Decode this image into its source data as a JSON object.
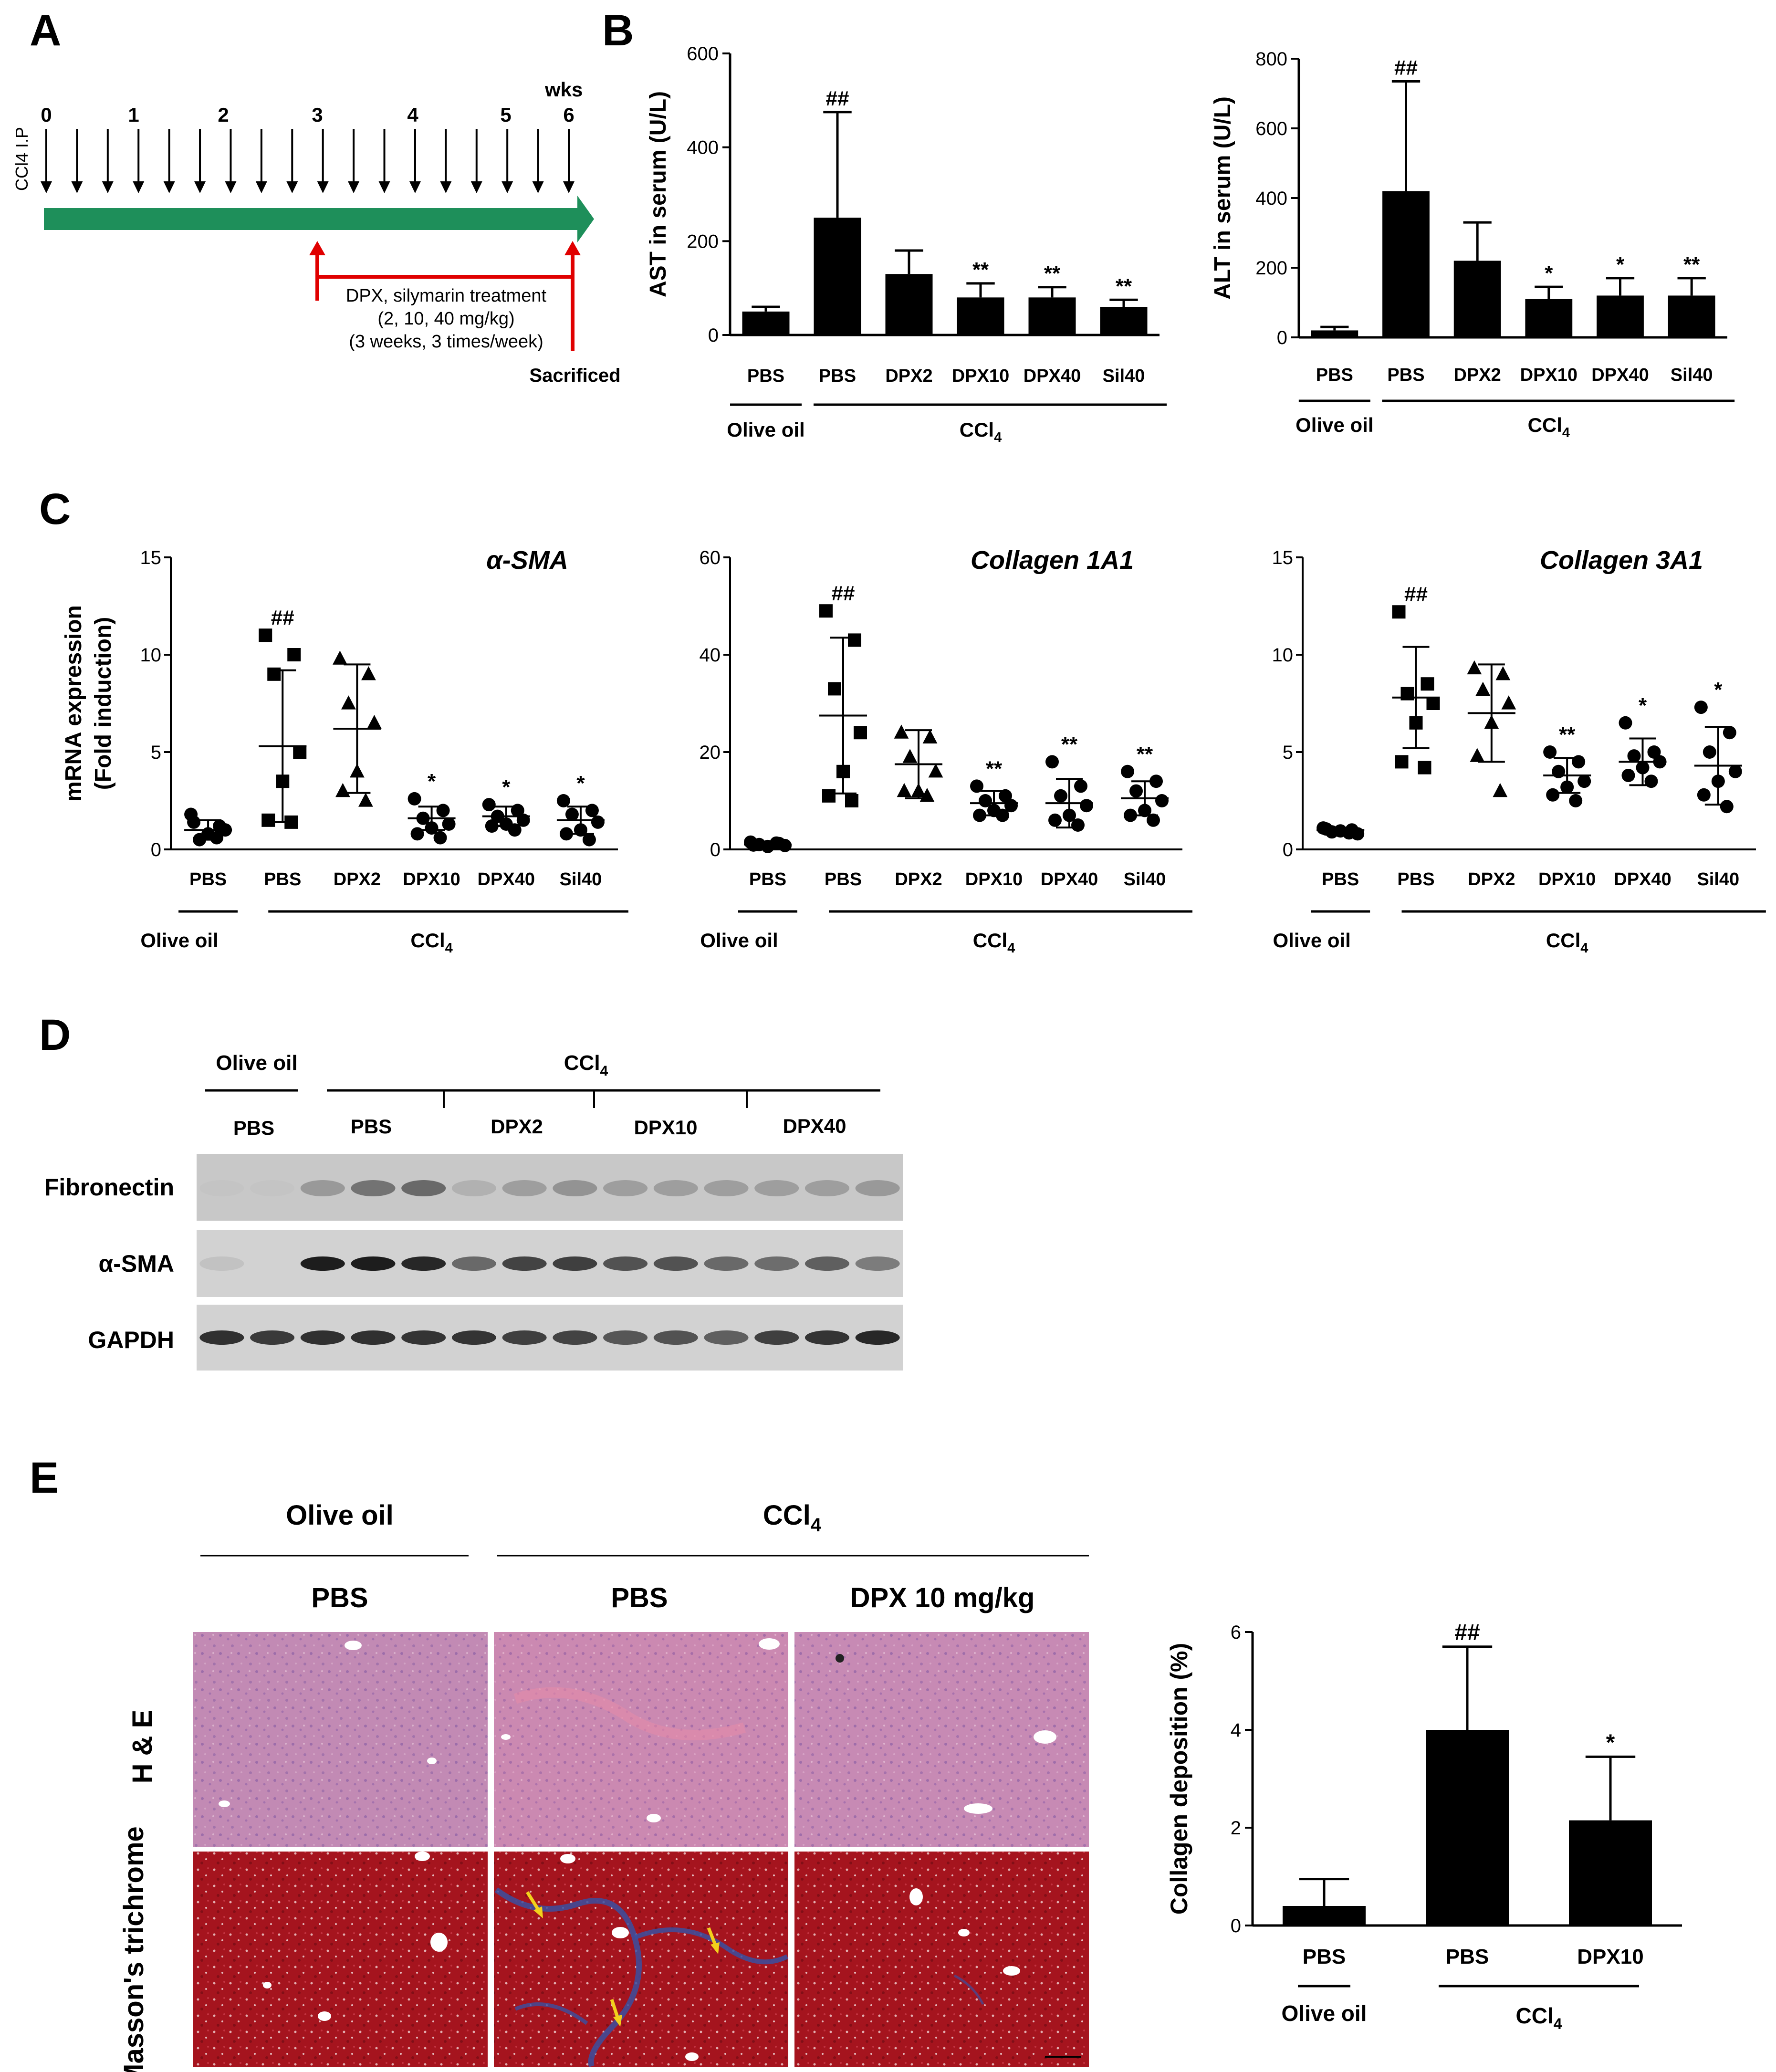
{
  "colors": {
    "ink": "#000000",
    "timeline_green": "#1e8f5a",
    "treatment_red": "#e00000",
    "he_stain": "#c98fb8",
    "trichrome_red": "#a5141e",
    "trichrome_blue": "#3a4fa0",
    "arrow_yellow": "#f2d01c"
  },
  "panel_labels": {
    "a": "A",
    "b": "B",
    "c": "C",
    "d": "D",
    "e": "E"
  },
  "panel_a": {
    "route_label": "CCl4 I.P",
    "week_ticks": [
      "0",
      "1",
      "2",
      "3",
      "4",
      "5",
      "6"
    ],
    "week_unit": "wks",
    "treatment_lines": [
      "DPX, silymarin treatment",
      "(2, 10, 40 mg/kg)",
      "(3 weeks, 3 times/week)"
    ],
    "sacrificed_label": "Sacrificed"
  },
  "group_labels": {
    "categories": [
      "PBS",
      "PBS",
      "DPX2",
      "DPX10",
      "DPX40",
      "Sil40"
    ],
    "olive_oil": "Olive oil",
    "ccl4": "CCl",
    "ccl4_sub": "4",
    "hash_marker": "##"
  },
  "chart_data": [
    {
      "id": "B-AST",
      "type": "bar",
      "categories": [
        "PBS",
        "PBS",
        "DPX2",
        "DPX10",
        "DPX40",
        "Sil40"
      ],
      "values": [
        50,
        250,
        130,
        80,
        80,
        60
      ],
      "error": [
        10,
        225,
        50,
        30,
        22,
        15
      ],
      "annotations": [
        "",
        "##",
        "",
        "**",
        "**",
        "**"
      ],
      "ylabel": "AST in serum (U/L)",
      "yticks": [
        "0",
        "200",
        "400",
        "600"
      ],
      "ylim": [
        0,
        600
      ]
    },
    {
      "id": "B-ALT",
      "type": "bar",
      "categories": [
        "PBS",
        "PBS",
        "DPX2",
        "DPX10",
        "DPX40",
        "Sil40"
      ],
      "values": [
        20,
        420,
        220,
        110,
        120,
        120
      ],
      "error": [
        10,
        315,
        110,
        35,
        50,
        50
      ],
      "annotations": [
        "",
        "##",
        "",
        "*",
        "*",
        "**"
      ],
      "ylabel": "ALT in serum (U/L)",
      "yticks": [
        "0",
        "200",
        "400",
        "600",
        "800"
      ],
      "ylim": [
        0,
        800
      ]
    },
    {
      "id": "C-aSMA",
      "type": "scatter",
      "title": "α-SMA",
      "ylabel": "mRNA expression (Fold induction)",
      "yticks": [
        "0",
        "5",
        "10",
        "15"
      ],
      "ylim": [
        0,
        15
      ],
      "categories": [
        "PBS",
        "PBS",
        "DPX2",
        "DPX10",
        "DPX40",
        "Sil40"
      ],
      "markers": [
        "circle",
        "square",
        "triangle",
        "circle",
        "circle",
        "circle"
      ],
      "points": [
        [
          1.8,
          1.2,
          0.5,
          1.0,
          0.8,
          1.4,
          0.6
        ],
        [
          11.0,
          10.0,
          9.0,
          5.0,
          3.5,
          1.5,
          1.4
        ],
        [
          9.8,
          9.0,
          7.5,
          6.5,
          4.0,
          3.0,
          2.5
        ],
        [
          2.6,
          2.0,
          1.6,
          1.3,
          1.1,
          0.8,
          0.6
        ],
        [
          2.3,
          2.0,
          1.7,
          1.5,
          1.3,
          1.2,
          1.0
        ],
        [
          2.5,
          2.0,
          1.8,
          1.4,
          1.0,
          0.8,
          0.5
        ]
      ],
      "mean": [
        1.0,
        5.3,
        6.2,
        1.6,
        1.7,
        1.5
      ],
      "sd": [
        0.5,
        3.9,
        3.3,
        0.6,
        0.5,
        0.7
      ],
      "annotations": [
        "",
        "##",
        "",
        "*",
        "*",
        "*"
      ]
    },
    {
      "id": "C-Col1A1",
      "type": "scatter",
      "title": "Collagen 1A1",
      "ylabel": "",
      "yticks": [
        "0",
        "20",
        "40",
        "60"
      ],
      "ylim": [
        0,
        60
      ],
      "categories": [
        "PBS",
        "PBS",
        "DPX2",
        "DPX10",
        "DPX40",
        "Sil40"
      ],
      "markers": [
        "circle",
        "square",
        "triangle",
        "circle",
        "circle",
        "circle"
      ],
      "points": [
        [
          1.5,
          1.2,
          1.0,
          0.8,
          0.6,
          0.9,
          1.3
        ],
        [
          49,
          43,
          33,
          24,
          16,
          11,
          10
        ],
        [
          24,
          23,
          19,
          16,
          12,
          12,
          11
        ],
        [
          13,
          11,
          10,
          9,
          8,
          7,
          7
        ],
        [
          18,
          13,
          11,
          9,
          7,
          6,
          5
        ],
        [
          16,
          14,
          12,
          10,
          8,
          7,
          6
        ]
      ],
      "mean": [
        1.0,
        27.5,
        17.5,
        9.5,
        9.5,
        10.5
      ],
      "sd": [
        0.3,
        16,
        7,
        2.5,
        5,
        3.5
      ],
      "annotations": [
        "",
        "##",
        "",
        "**",
        "**",
        "**"
      ]
    },
    {
      "id": "C-Col3A1",
      "type": "scatter",
      "title": "Collagen 3A1",
      "ylabel": "",
      "yticks": [
        "0",
        "5",
        "10",
        "15"
      ],
      "ylim": [
        0,
        15
      ],
      "categories": [
        "PBS",
        "PBS",
        "DPX2",
        "DPX10",
        "DPX40",
        "Sil40"
      ],
      "markers": [
        "circle",
        "square",
        "triangle",
        "circle",
        "circle",
        "circle"
      ],
      "points": [
        [
          1.1,
          1.0,
          0.9,
          0.8,
          0.95,
          1.05,
          0.85
        ],
        [
          12.2,
          8.5,
          8.0,
          7.5,
          6.5,
          4.5,
          4.2
        ],
        [
          9.3,
          9.0,
          8.2,
          7.5,
          6.5,
          4.8,
          3.0
        ],
        [
          5.0,
          4.5,
          4.0,
          3.5,
          3.2,
          2.8,
          2.5
        ],
        [
          6.5,
          5.0,
          4.8,
          4.5,
          4.2,
          3.8,
          3.5
        ],
        [
          7.3,
          6.0,
          5.0,
          4.0,
          3.5,
          2.8,
          2.2
        ]
      ],
      "mean": [
        1.0,
        7.8,
        7.0,
        3.8,
        4.5,
        4.3
      ],
      "sd": [
        0.1,
        2.6,
        2.5,
        0.9,
        1.2,
        2.0
      ],
      "annotations": [
        "",
        "##",
        "",
        "**",
        "*",
        "*"
      ]
    },
    {
      "id": "E-Collagen",
      "type": "bar",
      "categories": [
        "PBS",
        "PBS",
        "DPX10"
      ],
      "values": [
        0.4,
        4.0,
        2.15
      ],
      "error": [
        0.55,
        1.7,
        1.3
      ],
      "annotations": [
        "",
        "##",
        "*"
      ],
      "ylabel": "Collagen deposition (%)",
      "yticks": [
        "0",
        "2",
        "4",
        "6"
      ],
      "ylim": [
        0,
        6
      ]
    }
  ],
  "panel_d": {
    "olive_oil": "Olive oil",
    "ccl4": "CCl",
    "ccl4_sub": "4",
    "groups": [
      "PBS",
      "PBS",
      "DPX2",
      "DPX10",
      "DPX40"
    ],
    "rows": [
      {
        "label": "Fibronectin",
        "intensity": [
          0.02,
          0.02,
          0.25,
          0.45,
          0.5,
          0.12,
          0.22,
          0.28,
          0.22,
          0.22,
          0.22,
          0.22,
          0.22,
          0.25
        ]
      },
      {
        "label": "α-SMA",
        "intensity": [
          0.03,
          0.0,
          0.9,
          0.9,
          0.85,
          0.5,
          0.7,
          0.72,
          0.62,
          0.62,
          0.5,
          0.48,
          0.55,
          0.4
        ]
      },
      {
        "label": "GAPDH",
        "intensity": [
          0.8,
          0.75,
          0.8,
          0.8,
          0.78,
          0.78,
          0.72,
          0.7,
          0.6,
          0.62,
          0.55,
          0.72,
          0.78,
          0.85
        ]
      }
    ]
  },
  "panel_e": {
    "olive_oil": "Olive oil",
    "ccl4": "CCl",
    "ccl4_sub": "4",
    "columns": [
      "PBS",
      "PBS",
      "DPX 10 mg/kg"
    ],
    "rows": [
      "H & E",
      "Masson's trichrome"
    ]
  }
}
